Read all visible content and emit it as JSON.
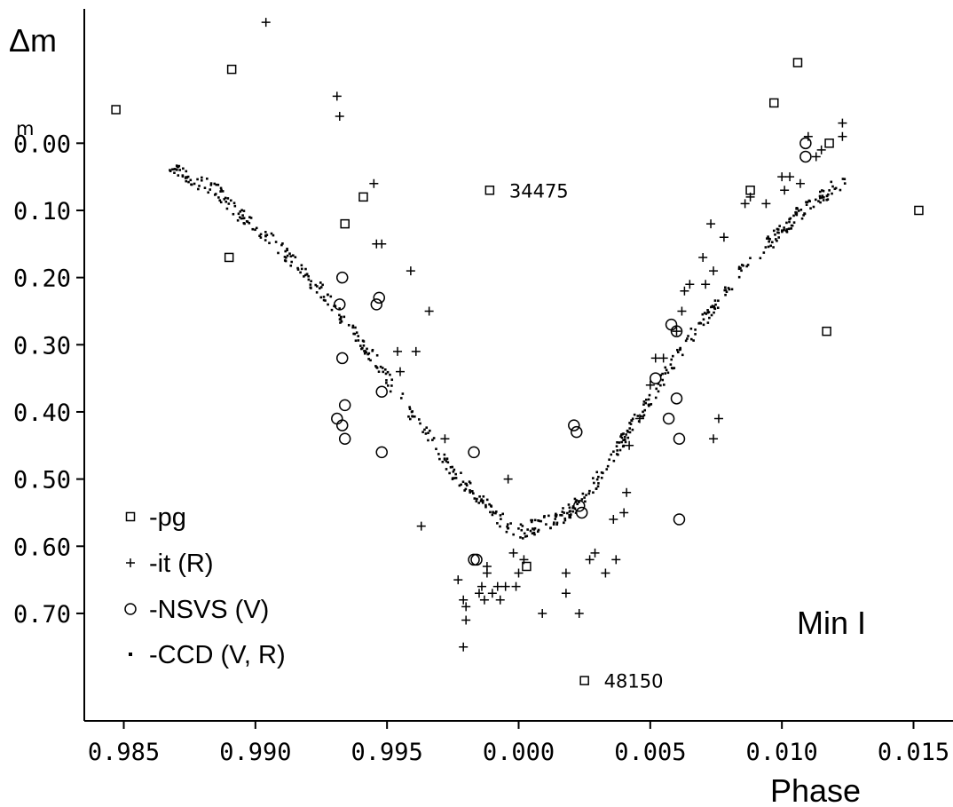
{
  "chart_data": {
    "type": "scatter",
    "title": "",
    "xlabel": "Phase",
    "ylabel": "Δm",
    "y_unit_mark": "m",
    "annotation": "Min I",
    "grid": false,
    "legend_position": "bottom-left",
    "y_inverted": true,
    "xlim": [
      0.9835,
      1.0165
    ],
    "ylim": [
      -0.2,
      0.86
    ],
    "x_ticks": [
      0.985,
      0.99,
      0.995,
      1.0,
      1.005,
      1.01,
      1.015
    ],
    "x_tick_labels": [
      "0.985",
      "0.990",
      "0.995",
      "0.000",
      "0.005",
      "0.010",
      "0.015"
    ],
    "y_ticks": [
      0.0,
      0.1,
      0.2,
      0.3,
      0.4,
      0.5,
      0.6,
      0.7
    ],
    "y_tick_labels": [
      "0.00",
      "0.10",
      "0.20",
      "0.30",
      "0.40",
      "0.50",
      "0.60",
      "0.70"
    ],
    "point_labels": [
      {
        "text": "34475",
        "x": 0.9989,
        "y": 0.07
      },
      {
        "text": "48150",
        "x": 1.0025,
        "y": 0.8
      }
    ],
    "series": [
      {
        "name": "-pg",
        "marker": "square",
        "points": [
          [
            0.9847,
            -0.05
          ],
          [
            0.9891,
            -0.11
          ],
          [
            0.989,
            0.17
          ],
          [
            0.9941,
            0.08
          ],
          [
            0.9934,
            0.12
          ],
          [
            0.9989,
            0.07
          ],
          [
            1.0003,
            0.63
          ],
          [
            1.0025,
            0.8
          ],
          [
            1.0088,
            0.07
          ],
          [
            1.0097,
            -0.06
          ],
          [
            1.0106,
            -0.12
          ],
          [
            1.0118,
            0.0
          ],
          [
            1.0117,
            0.28
          ],
          [
            1.0152,
            0.1
          ]
        ]
      },
      {
        "name": "-it (R)",
        "marker": "plus",
        "points": [
          [
            0.9904,
            -0.18
          ],
          [
            0.9931,
            -0.07
          ],
          [
            0.9932,
            -0.04
          ],
          [
            0.9945,
            0.06
          ],
          [
            0.9946,
            0.15
          ],
          [
            0.9948,
            0.15
          ],
          [
            0.9959,
            0.19
          ],
          [
            0.9966,
            0.25
          ],
          [
            0.9954,
            0.31
          ],
          [
            0.9961,
            0.31
          ],
          [
            0.9955,
            0.34
          ],
          [
            0.9963,
            0.57
          ],
          [
            0.9972,
            0.44
          ],
          [
            0.9977,
            0.65
          ],
          [
            0.9979,
            0.68
          ],
          [
            0.998,
            0.69
          ],
          [
            0.998,
            0.71
          ],
          [
            0.9979,
            0.75
          ],
          [
            0.9985,
            0.67
          ],
          [
            0.9986,
            0.66
          ],
          [
            0.9987,
            0.68
          ],
          [
            0.9988,
            0.63
          ],
          [
            0.9988,
            0.64
          ],
          [
            0.999,
            0.67
          ],
          [
            0.9992,
            0.66
          ],
          [
            0.9993,
            0.68
          ],
          [
            0.9995,
            0.66
          ],
          [
            0.9996,
            0.5
          ],
          [
            0.9999,
            0.66
          ],
          [
            0.9998,
            0.61
          ],
          [
            1.0,
            0.64
          ],
          [
            1.0002,
            0.62
          ],
          [
            1.0009,
            0.7
          ],
          [
            1.0018,
            0.64
          ],
          [
            1.0018,
            0.67
          ],
          [
            1.0023,
            0.7
          ],
          [
            1.0027,
            0.62
          ],
          [
            1.0029,
            0.61
          ],
          [
            1.0033,
            0.64
          ],
          [
            1.0036,
            0.56
          ],
          [
            1.0037,
            0.62
          ],
          [
            1.004,
            0.55
          ],
          [
            1.0041,
            0.52
          ],
          [
            1.0042,
            0.45
          ],
          [
            1.0046,
            0.41
          ],
          [
            1.005,
            0.36
          ],
          [
            1.0052,
            0.32
          ],
          [
            1.0055,
            0.32
          ],
          [
            1.006,
            0.28
          ],
          [
            1.0062,
            0.25
          ],
          [
            1.0063,
            0.22
          ],
          [
            1.0065,
            0.21
          ],
          [
            1.007,
            0.17
          ],
          [
            1.0071,
            0.21
          ],
          [
            1.0074,
            0.19
          ],
          [
            1.0073,
            0.12
          ],
          [
            1.0078,
            0.14
          ],
          [
            1.0074,
            0.44
          ],
          [
            1.0076,
            0.41
          ],
          [
            1.0086,
            0.09
          ],
          [
            1.0088,
            0.08
          ],
          [
            1.0094,
            0.09
          ],
          [
            1.01,
            0.05
          ],
          [
            1.0101,
            0.07
          ],
          [
            1.0103,
            0.05
          ],
          [
            1.0107,
            0.06
          ],
          [
            1.011,
            -0.01
          ],
          [
            1.0113,
            0.02
          ],
          [
            1.0115,
            0.01
          ],
          [
            1.0123,
            -0.03
          ],
          [
            1.0123,
            -0.01
          ]
        ]
      },
      {
        "name": "-NSVS (V)",
        "marker": "circle",
        "points": [
          [
            0.9931,
            0.41
          ],
          [
            0.9932,
            0.24
          ],
          [
            0.9933,
            0.2
          ],
          [
            0.9933,
            0.32
          ],
          [
            0.9933,
            0.42
          ],
          [
            0.9934,
            0.39
          ],
          [
            0.9934,
            0.44
          ],
          [
            0.9946,
            0.24
          ],
          [
            0.9947,
            0.23
          ],
          [
            0.9948,
            0.37
          ],
          [
            0.9948,
            0.46
          ],
          [
            0.9983,
            0.46
          ],
          [
            0.9983,
            0.62
          ],
          [
            0.9984,
            0.62
          ],
          [
            1.0021,
            0.42
          ],
          [
            1.0022,
            0.43
          ],
          [
            1.0023,
            0.54
          ],
          [
            1.0024,
            0.55
          ],
          [
            1.0052,
            0.35
          ],
          [
            1.0057,
            0.41
          ],
          [
            1.0058,
            0.27
          ],
          [
            1.006,
            0.28
          ],
          [
            1.006,
            0.38
          ],
          [
            1.0061,
            0.44
          ],
          [
            1.0061,
            0.56
          ],
          [
            1.0109,
            0.0
          ],
          [
            1.0109,
            0.02
          ]
        ]
      },
      {
        "name": "-CCD (V, R)",
        "marker": "dot",
        "curve": [
          [
            0.9867,
            0.04
          ],
          [
            0.9875,
            0.05
          ],
          [
            0.9885,
            0.07
          ],
          [
            0.9895,
            0.11
          ],
          [
            0.9905,
            0.14
          ],
          [
            0.9915,
            0.18
          ],
          [
            0.9925,
            0.22
          ],
          [
            0.9935,
            0.27
          ],
          [
            0.9945,
            0.32
          ],
          [
            0.9955,
            0.38
          ],
          [
            0.9965,
            0.43
          ],
          [
            0.9975,
            0.49
          ],
          [
            0.9985,
            0.53
          ],
          [
            0.9993,
            0.56
          ],
          [
            1.0,
            0.58
          ],
          [
            1.0007,
            0.57
          ],
          [
            1.0015,
            0.56
          ],
          [
            1.0025,
            0.53
          ],
          [
            1.0035,
            0.47
          ],
          [
            1.0045,
            0.41
          ],
          [
            1.0055,
            0.35
          ],
          [
            1.0065,
            0.29
          ],
          [
            1.0075,
            0.24
          ],
          [
            1.0085,
            0.19
          ],
          [
            1.0095,
            0.15
          ],
          [
            1.0105,
            0.11
          ],
          [
            1.0115,
            0.08
          ],
          [
            1.0125,
            0.05
          ]
        ],
        "approx_point_count": 600,
        "scatter_mag": 0.012
      }
    ]
  }
}
